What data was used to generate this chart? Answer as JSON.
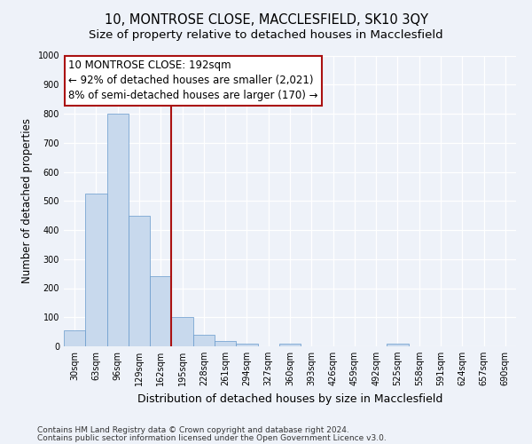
{
  "title": "10, MONTROSE CLOSE, MACCLESFIELD, SK10 3QY",
  "subtitle": "Size of property relative to detached houses in Macclesfield",
  "xlabel": "Distribution of detached houses by size in Macclesfield",
  "ylabel": "Number of detached properties",
  "bin_labels": [
    "30sqm",
    "63sqm",
    "96sqm",
    "129sqm",
    "162sqm",
    "195sqm",
    "228sqm",
    "261sqm",
    "294sqm",
    "327sqm",
    "360sqm",
    "393sqm",
    "426sqm",
    "459sqm",
    "492sqm",
    "525sqm",
    "558sqm",
    "591sqm",
    "624sqm",
    "657sqm",
    "690sqm"
  ],
  "bar_values": [
    55,
    525,
    800,
    450,
    240,
    100,
    40,
    18,
    10,
    0,
    10,
    0,
    0,
    0,
    0,
    10,
    0,
    0,
    0,
    0,
    0
  ],
  "bar_color": "#c8d9ed",
  "bar_edgecolor": "#6699cc",
  "vline_x": 5,
  "vline_color": "#aa1111",
  "annotation_title": "10 MONTROSE CLOSE: 192sqm",
  "annotation_line1": "← 92% of detached houses are smaller (2,021)",
  "annotation_line2": "8% of semi-detached houses are larger (170) →",
  "annotation_box_facecolor": "#ffffff",
  "annotation_box_edgecolor": "#aa1111",
  "ylim": [
    0,
    1000
  ],
  "yticks": [
    0,
    100,
    200,
    300,
    400,
    500,
    600,
    700,
    800,
    900,
    1000
  ],
  "footer_line1": "Contains HM Land Registry data © Crown copyright and database right 2024.",
  "footer_line2": "Contains public sector information licensed under the Open Government Licence v3.0.",
  "bg_color": "#eef2f9",
  "grid_color": "#ffffff",
  "title_fontsize": 10.5,
  "subtitle_fontsize": 9.5,
  "xlabel_fontsize": 9,
  "ylabel_fontsize": 8.5,
  "tick_fontsize": 7,
  "annotation_title_fontsize": 9,
  "annotation_body_fontsize": 8.5,
  "footer_fontsize": 6.5
}
